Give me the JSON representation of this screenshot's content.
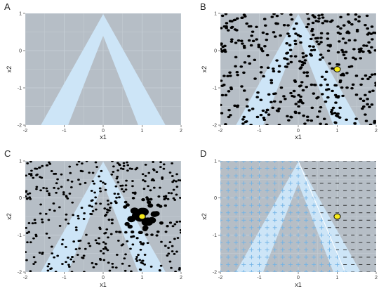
{
  "colors": {
    "background": "#b6bec6",
    "band": "#cde5f7",
    "grid": "#c9d1d8",
    "point": "#000000",
    "highlight": "#f7ea1c",
    "plus": "#6fb2e6",
    "minus": "#202020",
    "boundary": "#ffffff"
  },
  "chart_data": [
    {
      "panel": "A",
      "type": "region",
      "xlabel": "x1",
      "ylabel": "x2",
      "xlim": [
        -2,
        2
      ],
      "ylim": [
        -2,
        1
      ],
      "xticks": [
        "-2",
        "-1",
        "0",
        "1",
        "2"
      ],
      "yticks": [
        "-2",
        "-1",
        "0",
        "1"
      ],
      "grid": true,
      "region": {
        "apex": [
          0,
          1
        ],
        "inner_apex": [
          0,
          0.4
        ],
        "base_outer": [
          -1.6,
          1.6
        ],
        "base_inner": [
          -0.9,
          0.9
        ],
        "base_y": -2
      }
    },
    {
      "panel": "B",
      "type": "scatter",
      "xlabel": "x1",
      "ylabel": "x2",
      "xlim": [
        -2,
        2
      ],
      "ylim": [
        -2,
        1
      ],
      "xticks": [
        "-2",
        "-1",
        "0",
        "1",
        "2"
      ],
      "yticks": [
        "-2",
        "-1",
        "0",
        "1"
      ],
      "grid": true,
      "n_points": 420,
      "highlight_point": [
        1.0,
        -0.5
      ]
    },
    {
      "panel": "C",
      "type": "scatter",
      "xlabel": "x1",
      "ylabel": "x2",
      "xlim": [
        -2,
        2
      ],
      "ylim": [
        -2,
        1
      ],
      "xticks": [
        "-2",
        "-1",
        "0",
        "1",
        "2"
      ],
      "yticks": [
        "-2",
        "-1",
        "0",
        "1"
      ],
      "grid": true,
      "n_points": 420,
      "highlight_point": [
        1.0,
        -0.5
      ],
      "note": "point size grows near the highlighted point"
    },
    {
      "panel": "D",
      "type": "scatter",
      "xlabel": "x1",
      "ylabel": "x2",
      "xlim": [
        -2,
        2
      ],
      "ylim": [
        -2,
        1
      ],
      "xticks": [
        "-2",
        "-1",
        "0",
        "1",
        "2"
      ],
      "yticks": [
        "-2",
        "-1",
        "0",
        "1"
      ],
      "grid": true,
      "grid_points_step": 0.2,
      "markers": [
        "+",
        "-"
      ],
      "highlight_point": [
        1.0,
        -0.5
      ],
      "boundary_line": [
        [
          0,
          1
        ],
        [
          1.2,
          -2
        ]
      ]
    }
  ]
}
